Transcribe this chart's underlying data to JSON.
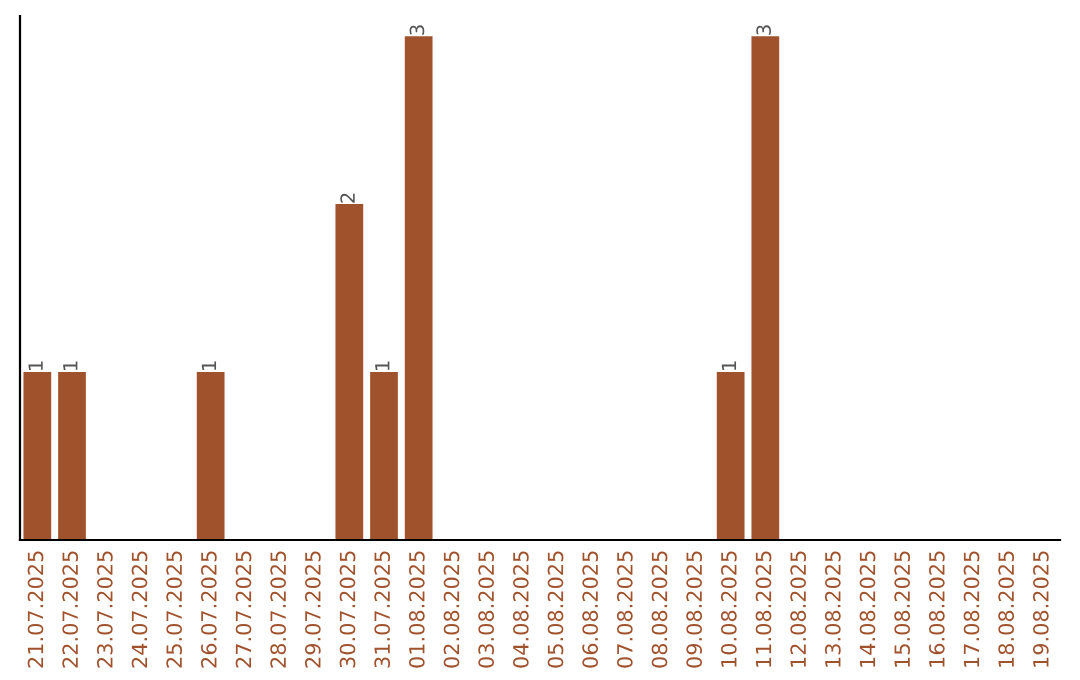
{
  "chart_data": {
    "type": "bar",
    "categories": [
      "21.07.2025",
      "22.07.2025",
      "23.07.2025",
      "24.07.2025",
      "25.07.2025",
      "26.07.2025",
      "27.07.2025",
      "28.07.2025",
      "29.07.2025",
      "30.07.2025",
      "31.07.2025",
      "01.08.2025",
      "02.08.2025",
      "03.08.2025",
      "04.08.2025",
      "05.08.2025",
      "06.08.2025",
      "07.08.2025",
      "08.08.2025",
      "09.08.2025",
      "10.08.2025",
      "11.08.2025",
      "12.08.2025",
      "13.08.2025",
      "14.08.2025",
      "15.08.2025",
      "16.08.2025",
      "17.08.2025",
      "18.08.2025",
      "19.08.2025"
    ],
    "values": [
      1,
      1,
      0,
      0,
      0,
      1,
      0,
      0,
      0,
      2,
      1,
      3,
      0,
      0,
      0,
      0,
      0,
      0,
      0,
      0,
      1,
      3,
      0,
      0,
      0,
      0,
      0,
      0,
      0,
      0
    ],
    "value_labels": [
      "1",
      "1",
      null,
      null,
      null,
      "1",
      null,
      null,
      null,
      "2",
      "1",
      "3",
      null,
      null,
      null,
      null,
      null,
      null,
      null,
      null,
      "1",
      "3",
      null,
      null,
      null,
      null,
      null,
      null,
      null,
      null
    ],
    "color": "#a0522d",
    "tick_labels": "x",
    "grid": false,
    "legend": false
  }
}
